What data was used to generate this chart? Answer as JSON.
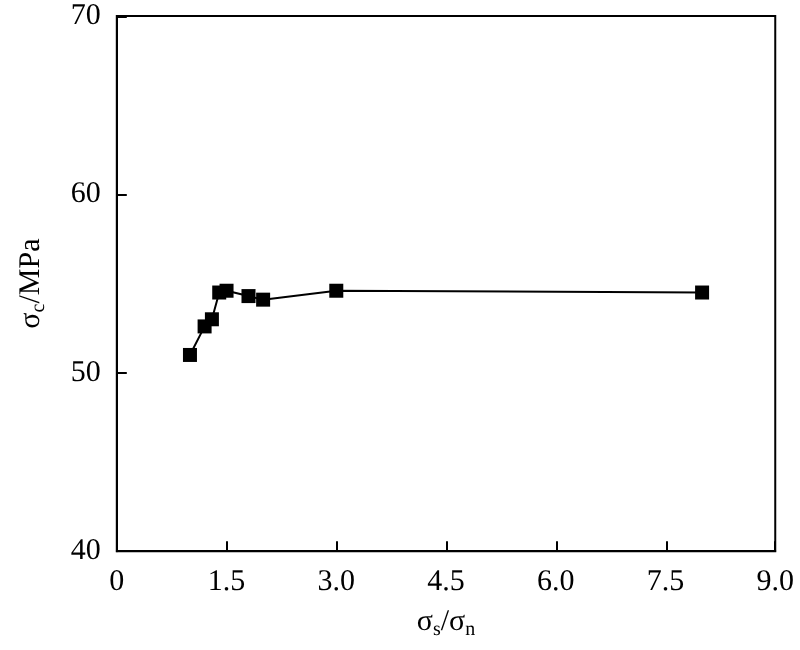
{
  "chart_data": {
    "type": "line",
    "xlabel": "σ$_{s}$/σ$_{n}$",
    "ylabel": "σ$_{c}$/MPa",
    "x": [
      1.0,
      1.2,
      1.3,
      1.4,
      1.5,
      1.8,
      2.0,
      3.0,
      8.0
    ],
    "series": [
      {
        "color": "#000000",
        "values": [
          51.0,
          52.6,
          53.0,
          54.5,
          54.6,
          54.3,
          54.1,
          54.6,
          54.5
        ]
      }
    ],
    "xlim": [
      0,
      9
    ],
    "xticks": [
      {
        "value": 0,
        "label": "0"
      },
      1.5,
      {
        "value": 3,
        "label": "3.0"
      },
      4.5,
      {
        "value": 6,
        "label": "6.0"
      },
      7.5,
      {
        "value": 9,
        "label": "9.0"
      }
    ],
    "ylim": [
      40,
      70
    ],
    "yticks": [
      40,
      50,
      60,
      70
    ],
    "grid": false,
    "marker": "square",
    "line_style": "solid"
  }
}
